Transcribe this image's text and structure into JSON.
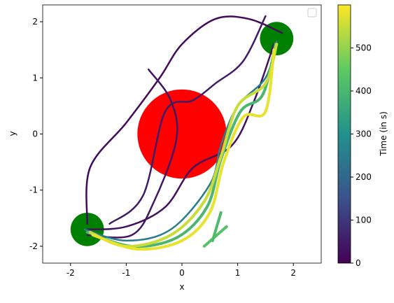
{
  "chart_data": {
    "type": "trajectory",
    "x_label": "x",
    "y_label": "y",
    "xlim": [
      -2.5,
      2.5
    ],
    "xticks": [
      -2,
      -1,
      0,
      1,
      2
    ],
    "ylim": [
      -2.3,
      2.3
    ],
    "yticks": [
      -2,
      -1,
      0,
      1,
      2
    ],
    "colorbar": {
      "label": "Time (in s)",
      "lim": [
        0,
        600
      ],
      "ticks": [
        0,
        100,
        200,
        300,
        400,
        500
      ]
    },
    "circles": [
      {
        "x": 0,
        "y": 0,
        "r": 0.8,
        "color": "#ff0000"
      },
      {
        "x": -1.7,
        "y": -1.7,
        "r": 0.3,
        "color": "#008000"
      },
      {
        "x": 1.7,
        "y": 1.7,
        "r": 0.3,
        "color": "#008000"
      }
    ],
    "trajectories": [
      {
        "time": 20,
        "x": [
          -1.7,
          -1.65,
          -1.0,
          -0.4,
          0.0,
          0.6,
          1.2,
          1.8
        ],
        "y": [
          -1.6,
          -0.6,
          0.2,
          1.0,
          1.6,
          2.05,
          2.05,
          1.8
        ]
      },
      {
        "time": 30,
        "x": [
          -1.7,
          -1.0,
          -0.3,
          0.2,
          0.9,
          1.3,
          1.65
        ],
        "y": [
          -1.7,
          -1.65,
          -1.3,
          -0.6,
          -0.2,
          0.6,
          1.6
        ]
      },
      {
        "time": 40,
        "x": [
          -0.6,
          -0.2,
          -0.1,
          -0.5,
          -0.9,
          -1.7
        ],
        "y": [
          1.15,
          0.6,
          -0.1,
          -1.2,
          -1.8,
          -1.8
        ]
      },
      {
        "time": 50,
        "x": [
          -1.3,
          -0.7,
          -0.3,
          0.2,
          0.6,
          1.1,
          1.5
        ],
        "y": [
          -1.6,
          -1.1,
          0.4,
          0.6,
          0.9,
          1.3,
          2.1
        ]
      },
      {
        "time": 250,
        "x": [
          -1.75,
          -1.0,
          -0.2,
          0.5,
          0.7,
          1.0,
          1.5,
          1.7
        ],
        "y": [
          -1.7,
          -1.9,
          -1.7,
          -0.9,
          -0.2,
          0.5,
          1.0,
          1.65
        ]
      },
      {
        "time": 400,
        "x": [
          -1.7,
          -0.9,
          -0.1,
          0.45,
          0.7,
          1.05,
          1.45,
          1.68
        ],
        "y": [
          -1.75,
          -2.0,
          -1.85,
          -1.3,
          -0.45,
          0.4,
          0.7,
          1.6
        ]
      },
      {
        "time": 550,
        "x": [
          -1.65,
          -1.0,
          -0.2,
          0.4,
          0.7,
          1.0,
          1.5,
          1.7
        ],
        "y": [
          -1.75,
          -2.0,
          -1.8,
          -1.2,
          -0.4,
          0.5,
          0.9,
          1.6
        ]
      },
      {
        "time": 580,
        "x": [
          -1.6,
          -0.8,
          0.0,
          0.5,
          0.75,
          1.1,
          1.5,
          1.65
        ],
        "y": [
          -1.8,
          -2.05,
          -1.9,
          -1.4,
          -0.5,
          0.3,
          0.4,
          1.5
        ]
      },
      {
        "time": 430,
        "x": [
          0.4,
          0.8
        ],
        "y": [
          -2.0,
          -1.65
        ]
      },
      {
        "time": 410,
        "x": [
          0.55,
          0.7
        ],
        "y": [
          -1.9,
          -1.4
        ]
      }
    ]
  }
}
